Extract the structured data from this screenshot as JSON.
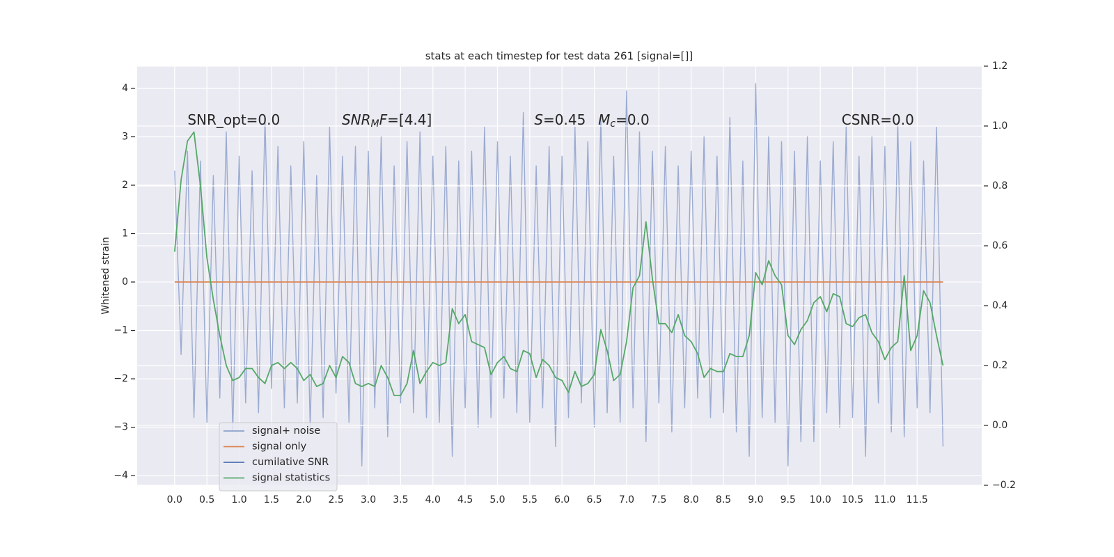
{
  "chart_data": {
    "type": "line",
    "title": "stats at each timestep for test data 261 [signal=[]]",
    "ylabel": "Whitened strain",
    "xlim": [
      -0.58,
      12.5
    ],
    "ylim": [
      -4.2,
      4.46
    ],
    "y2lim": [
      -0.2,
      1.2
    ],
    "xticks": [
      {
        "value": 0,
        "label": "0.0"
      },
      {
        "value": 0.5,
        "label": "0.5"
      },
      {
        "value": 1,
        "label": "1.0"
      },
      {
        "value": 1.5,
        "label": "1.5"
      },
      {
        "value": 2,
        "label": "2.0"
      },
      {
        "value": 2.5,
        "label": "2.5"
      },
      {
        "value": 3,
        "label": "3.0"
      },
      {
        "value": 3.5,
        "label": "3.5"
      },
      {
        "value": 4,
        "label": "4.0"
      },
      {
        "value": 4.5,
        "label": "4.5"
      },
      {
        "value": 5,
        "label": "5.0"
      },
      {
        "value": 5.5,
        "label": "5.5"
      },
      {
        "value": 6,
        "label": "6.0"
      },
      {
        "value": 6.5,
        "label": "6.5"
      },
      {
        "value": 7,
        "label": "7.0"
      },
      {
        "value": 7.5,
        "label": "7.5"
      },
      {
        "value": 8,
        "label": "8.0"
      },
      {
        "value": 8.5,
        "label": "8.5"
      },
      {
        "value": 9,
        "label": "9.0"
      },
      {
        "value": 9.5,
        "label": "9.5"
      },
      {
        "value": 10,
        "label": "10.0"
      },
      {
        "value": 10.5,
        "label": "10.5"
      },
      {
        "value": 11,
        "label": "11.0"
      },
      {
        "value": 11.5,
        "label": "11.5"
      }
    ],
    "yticks": [
      {
        "value": -4,
        "label": "−4"
      },
      {
        "value": -3,
        "label": "−3"
      },
      {
        "value": -2,
        "label": "−2"
      },
      {
        "value": -1,
        "label": "−1"
      },
      0,
      1,
      2,
      3,
      4
    ],
    "y2ticks": [
      {
        "value": -0.2,
        "label": "−0.2"
      },
      {
        "value": 0,
        "label": "0.0"
      },
      0.2,
      0.4,
      0.6,
      0.8,
      {
        "value": 1,
        "label": "1.0"
      },
      1.2
    ],
    "grid": true,
    "legend": "lower left",
    "x": [
      0.0,
      0.1,
      0.2,
      0.3,
      0.4,
      0.5,
      0.6,
      0.7,
      0.8,
      0.9,
      1.0,
      1.1,
      1.2,
      1.3,
      1.4,
      1.5,
      1.6,
      1.7,
      1.8,
      1.9,
      2.0,
      2.1,
      2.2,
      2.3,
      2.4,
      2.5,
      2.6,
      2.7,
      2.8,
      2.9,
      3.0,
      3.1,
      3.2,
      3.3,
      3.4,
      3.5,
      3.6,
      3.7,
      3.8,
      3.9,
      4.0,
      4.1,
      4.2,
      4.3,
      4.4,
      4.5,
      4.6,
      4.7,
      4.8,
      4.9,
      5.0,
      5.1,
      5.2,
      5.3,
      5.4,
      5.5,
      5.6,
      5.7,
      5.8,
      5.9,
      6.0,
      6.1,
      6.2,
      6.3,
      6.4,
      6.5,
      6.6,
      6.7,
      6.8,
      6.9,
      7.0,
      7.1,
      7.2,
      7.3,
      7.4,
      7.5,
      7.6,
      7.7,
      7.8,
      7.9,
      8.0,
      8.1,
      8.2,
      8.3,
      8.4,
      8.5,
      8.6,
      8.7,
      8.8,
      8.9,
      9.0,
      9.1,
      9.2,
      9.3,
      9.4,
      9.5,
      9.6,
      9.7,
      9.8,
      9.9,
      10.0,
      10.1,
      10.2,
      10.3,
      10.4,
      10.5,
      10.6,
      10.7,
      10.8,
      10.9,
      11.0,
      11.1,
      11.2,
      11.3,
      11.4,
      11.5,
      11.6,
      11.7,
      11.8,
      11.9
    ],
    "series": [
      {
        "name": "signal+ noise",
        "color": "#8da0cb",
        "values": [
          2.3,
          -1.5,
          2.7,
          -2.8,
          2.5,
          -2.9,
          2.2,
          -2.4,
          3.1,
          -3.1,
          2.6,
          -2.5,
          2.3,
          -2.7,
          3.4,
          -2.2,
          2.8,
          -2.6,
          2.4,
          -2.5,
          2.9,
          -3.0,
          2.2,
          -2.8,
          3.2,
          -2.3,
          2.6,
          -2.9,
          2.8,
          -3.8,
          2.7,
          -2.6,
          3.0,
          -3.2,
          2.4,
          -2.5,
          2.9,
          -2.7,
          3.1,
          -2.8,
          2.6,
          -2.9,
          2.8,
          -3.6,
          2.5,
          -2.6,
          2.7,
          -3.0,
          3.2,
          -2.8,
          2.9,
          -2.4,
          2.6,
          -2.7,
          3.5,
          -2.9,
          2.4,
          -2.6,
          2.8,
          -3.4,
          2.6,
          -2.8,
          3.2,
          -2.5,
          2.9,
          -3.0,
          3.4,
          -2.7,
          2.6,
          -2.9,
          3.95,
          -2.6,
          3.1,
          -3.3,
          2.7,
          -2.5,
          2.8,
          -3.1,
          2.4,
          -2.6,
          2.7,
          -2.4,
          3.0,
          -2.8,
          2.6,
          -2.7,
          3.4,
          -3.1,
          2.5,
          -3.6,
          4.1,
          -2.8,
          3.0,
          -2.9,
          2.9,
          -3.8,
          2.7,
          -3.3,
          3.0,
          -3.3,
          2.5,
          -2.7,
          2.9,
          -3.0,
          3.2,
          -2.8,
          2.6,
          -3.6,
          3.0,
          -2.5,
          2.8,
          -3.1,
          3.3,
          -3.2,
          2.9,
          -2.6,
          2.5,
          -2.7,
          3.2,
          -3.4
        ]
      },
      {
        "name": "signal only",
        "color": "#dd8452",
        "x": [
          0.0,
          11.9
        ],
        "values": [
          0,
          0
        ]
      },
      {
        "name": "cumilative SNR",
        "color": "#4c72b0",
        "x": [],
        "values": []
      },
      {
        "name": "signal statistics",
        "color": "#55a868",
        "axis": "y2",
        "values": [
          0.58,
          0.82,
          0.95,
          0.98,
          0.8,
          0.56,
          0.42,
          0.3,
          0.2,
          0.15,
          0.16,
          0.19,
          0.19,
          0.16,
          0.14,
          0.2,
          0.21,
          0.19,
          0.21,
          0.19,
          0.15,
          0.17,
          0.13,
          0.14,
          0.2,
          0.16,
          0.23,
          0.21,
          0.14,
          0.13,
          0.14,
          0.13,
          0.2,
          0.16,
          0.1,
          0.1,
          0.14,
          0.25,
          0.14,
          0.18,
          0.21,
          0.2,
          0.21,
          0.39,
          0.34,
          0.37,
          0.28,
          0.27,
          0.26,
          0.17,
          0.21,
          0.23,
          0.19,
          0.18,
          0.25,
          0.24,
          0.16,
          0.22,
          0.2,
          0.16,
          0.15,
          0.11,
          0.18,
          0.13,
          0.14,
          0.17,
          0.32,
          0.25,
          0.15,
          0.17,
          0.28,
          0.46,
          0.5,
          0.68,
          0.49,
          0.34,
          0.34,
          0.31,
          0.37,
          0.3,
          0.28,
          0.24,
          0.16,
          0.19,
          0.18,
          0.18,
          0.24,
          0.23,
          0.23,
          0.3,
          0.51,
          0.47,
          0.55,
          0.5,
          0.47,
          0.3,
          0.27,
          0.32,
          0.35,
          0.41,
          0.43,
          0.38,
          0.44,
          0.43,
          0.34,
          0.33,
          0.36,
          0.37,
          0.31,
          0.28,
          0.22,
          0.26,
          0.28,
          0.5,
          0.25,
          0.3,
          0.45,
          0.41,
          0.3,
          0.2
        ]
      }
    ],
    "annotations": [
      {
        "x": 0.2,
        "y": 3.34,
        "parts": [
          {
            "text": "SNR_opt=0.0"
          }
        ]
      },
      {
        "x": 2.59,
        "y": 3.34,
        "parts": [
          {
            "text": "SNR",
            "italic": true
          },
          {
            "text": "M",
            "italic": true,
            "sub": true
          },
          {
            "text": "F",
            "italic": true
          },
          {
            "text": "=[4.4]"
          }
        ]
      },
      {
        "x": 5.57,
        "y": 3.34,
        "parts": [
          {
            "text": "S",
            "italic": true
          },
          {
            "text": "=0.45"
          }
        ]
      },
      {
        "x": 6.56,
        "y": 3.34,
        "parts": [
          {
            "text": "M",
            "italic": true
          },
          {
            "text": "c",
            "italic": true,
            "sub": true
          },
          {
            "text": "=0.0"
          }
        ]
      },
      {
        "x": 10.33,
        "y": 3.34,
        "parts": [
          {
            "text": "CSNR=0.0"
          }
        ]
      }
    ]
  }
}
